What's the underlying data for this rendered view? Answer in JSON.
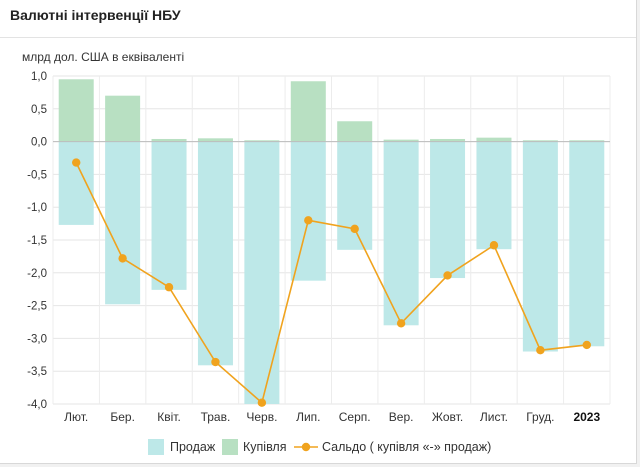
{
  "page": {
    "title": "Валютні інтервенції НБУ"
  },
  "chart_data": {
    "type": "bar",
    "title": "",
    "subtitle": "млрд дол. США в еквіваленті",
    "ylim": [
      -4.0,
      1.0
    ],
    "yticks": [
      "1,0",
      "0,5",
      "0,0",
      "-0,5",
      "-1,0",
      "-1,5",
      "-2,0",
      "-2,5",
      "-3,0",
      "-3,5",
      "-4,0"
    ],
    "ytick_values": [
      1.0,
      0.5,
      0.0,
      -0.5,
      -1.0,
      -1.5,
      -2.0,
      -2.5,
      -3.0,
      -3.5,
      -4.0
    ],
    "categories": [
      "Лют.",
      "Бер.",
      "Квіт.",
      "Трав.",
      "Черв.",
      "Лип.",
      "Серп.",
      "Вер.",
      "Жовт.",
      "Лист.",
      "Груд.",
      "2023"
    ],
    "bold_categories": [
      "2023"
    ],
    "grid": true,
    "legend_position": "bottom",
    "series": [
      {
        "name": "Продаж",
        "type": "bar",
        "color": "#bde8e8",
        "values": [
          -1.27,
          -2.48,
          -2.26,
          -3.41,
          -4.0,
          -2.12,
          -1.65,
          -2.8,
          -2.08,
          -1.64,
          -3.2,
          -3.12
        ]
      },
      {
        "name": "Купівля",
        "type": "bar",
        "color": "#b8e0c2",
        "values": [
          0.95,
          0.7,
          0.04,
          0.05,
          0.02,
          0.92,
          0.31,
          0.03,
          0.04,
          0.06,
          0.02,
          0.02
        ]
      },
      {
        "name": "Сальдо ( купівля «-» продаж)",
        "type": "line",
        "color": "#f0a31e",
        "values": [
          -0.32,
          -1.78,
          -2.22,
          -3.36,
          -3.98,
          -1.2,
          -1.33,
          -2.77,
          -2.04,
          -1.58,
          -3.18,
          -3.1
        ]
      }
    ]
  }
}
